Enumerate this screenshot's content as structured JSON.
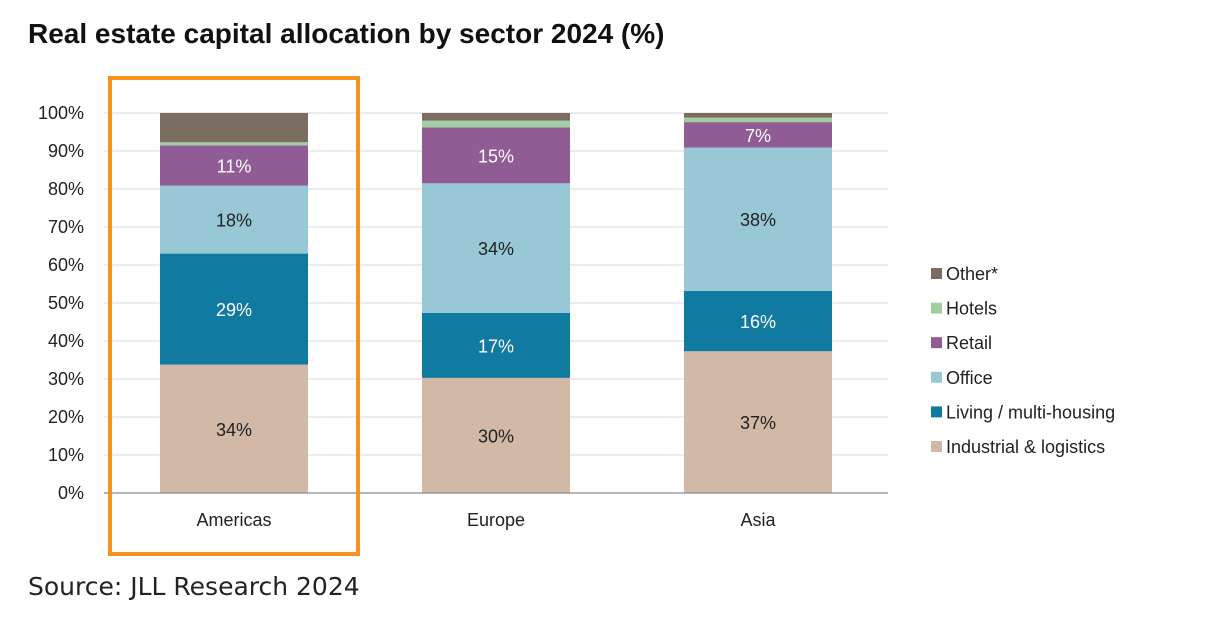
{
  "title": "Real estate capital allocation by sector 2024 (%)",
  "source": "Source: JLL Research 2024",
  "highlight_color": "#F7921E",
  "chart_data": {
    "type": "bar",
    "stacked": true,
    "categories": [
      "Americas",
      "Europe",
      "Asia"
    ],
    "ylim": [
      0,
      100
    ],
    "yticks": [
      0,
      10,
      20,
      30,
      40,
      50,
      60,
      70,
      80,
      90,
      100
    ],
    "ytick_labels": [
      "0%",
      "10%",
      "20%",
      "30%",
      "40%",
      "50%",
      "60%",
      "70%",
      "80%",
      "90%",
      "100%"
    ],
    "grid": true,
    "legend_position": "right",
    "highlighted_category": "Americas",
    "series": [
      {
        "name": "Industrial & logistics",
        "color": "#D1B8A7",
        "label_color": "#222222",
        "values": [
          33.8,
          30.3,
          37.3
        ],
        "labels": [
          "34%",
          "30%",
          "37%"
        ]
      },
      {
        "name": "Living / multi-housing",
        "color": "#107AA1",
        "label_color": "#ffffff",
        "values": [
          29.2,
          17.1,
          15.9
        ],
        "labels": [
          "29%",
          "17%",
          "16%"
        ]
      },
      {
        "name": "Office",
        "color": "#98C7D6",
        "label_color": "#222222",
        "values": [
          17.9,
          34.1,
          37.7
        ],
        "labels": [
          "18%",
          "34%",
          "38%"
        ]
      },
      {
        "name": "Retail",
        "color": "#8F5C96",
        "label_color": "#ffffff",
        "values": [
          10.6,
          14.7,
          6.7
        ],
        "labels": [
          "11%",
          "15%",
          "7%"
        ]
      },
      {
        "name": "Hotels",
        "color": "#A2CEA2",
        "label_color": "#222222",
        "values": [
          0.8,
          1.8,
          1.2
        ],
        "labels": [
          "",
          "",
          ""
        ]
      },
      {
        "name": "Other*",
        "color": "#7B6D61",
        "label_color": "#ffffff",
        "values": [
          7.7,
          2.0,
          1.2
        ],
        "labels": [
          "",
          "",
          ""
        ]
      }
    ]
  }
}
